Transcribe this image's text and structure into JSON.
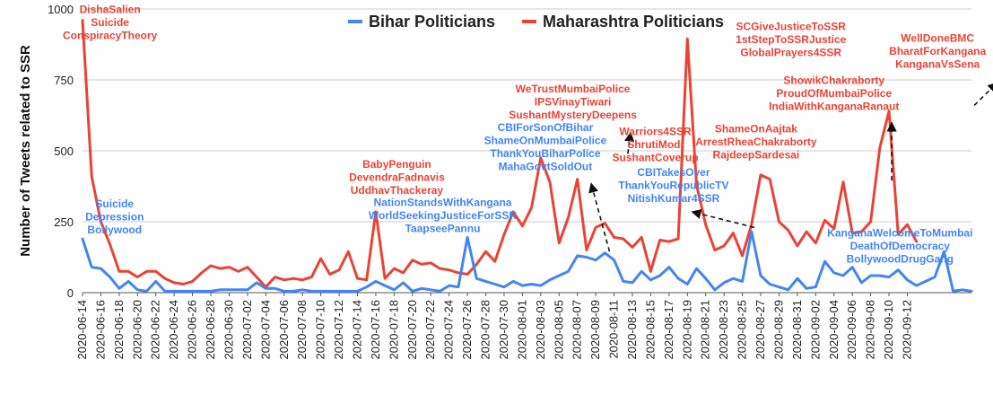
{
  "chart_data": {
    "type": "line",
    "title": "",
    "xlabel": "",
    "ylabel": "Number of Tweets related to SSR",
    "ylim": [
      0,
      1000
    ],
    "yticks": [
      0,
      250,
      500,
      750,
      1000
    ],
    "grid": true,
    "legend_position": "top-center",
    "start_date": "2020-06-14",
    "xtick_labels": [
      "2020-06-14",
      "2020-06-16",
      "2020-06-18",
      "2020-06-20",
      "2020-06-22",
      "2020-06-24",
      "2020-06-26",
      "2020-06-28",
      "2020-06-30",
      "2020-07-02",
      "2020-07-04",
      "2020-07-06",
      "2020-07-08",
      "2020-07-10",
      "2020-07-12",
      "2020-07-14",
      "2020-07-16",
      "2020-07-18",
      "2020-07-20",
      "2020-07-22",
      "2020-07-24",
      "2020-07-26",
      "2020-07-28",
      "2020-07-30",
      "2020-08-01",
      "2020-08-03",
      "2020-08-05",
      "2020-08-07",
      "2020-08-09",
      "2020-08-11",
      "2020-08-13",
      "2020-08-15",
      "2020-08-17",
      "2020-08-19",
      "2020-08-21",
      "2020-08-23",
      "2020-08-25",
      "2020-08-27",
      "2020-08-29",
      "2020-08-31",
      "2020-09-02",
      "2020-09-04",
      "2020-09-06",
      "2020-09-08",
      "2020-09-10",
      "2020-09-12"
    ],
    "series": [
      {
        "name": "Bihar Politicians",
        "color": "#4285f4",
        "values": [
          190,
          90,
          85,
          55,
          15,
          40,
          10,
          5,
          40,
          5,
          5,
          5,
          5,
          5,
          5,
          10,
          10,
          10,
          10,
          35,
          15,
          15,
          5,
          5,
          10,
          5,
          5,
          5,
          5,
          5,
          5,
          20,
          40,
          25,
          10,
          35,
          5,
          15,
          10,
          5,
          25,
          20,
          195,
          50,
          40,
          30,
          20,
          40,
          25,
          30,
          25,
          45,
          60,
          75,
          130,
          125,
          115,
          140,
          115,
          40,
          35,
          75,
          45,
          60,
          90,
          50,
          30,
          85,
          50,
          10,
          35,
          50,
          40,
          215,
          60,
          30,
          20,
          10,
          50,
          15,
          20,
          110,
          70,
          60,
          90,
          35,
          60,
          60,
          55,
          80,
          45,
          25,
          40,
          55,
          145,
          5,
          10,
          5
        ]
      },
      {
        "name": "Maharashtra Politicians",
        "color": "#ea4335",
        "values": [
          960,
          410,
          250,
          170,
          75,
          75,
          55,
          75,
          75,
          50,
          35,
          30,
          40,
          70,
          95,
          85,
          90,
          75,
          90,
          55,
          20,
          55,
          45,
          50,
          45,
          55,
          120,
          65,
          80,
          145,
          50,
          45,
          285,
          50,
          85,
          70,
          115,
          100,
          105,
          85,
          80,
          70,
          65,
          100,
          145,
          110,
          205,
          285,
          235,
          300,
          475,
          390,
          175,
          265,
          400,
          150,
          230,
          245,
          195,
          190,
          160,
          195,
          75,
          185,
          180,
          190,
          895,
          380,
          240,
          150,
          165,
          210,
          130,
          240,
          415,
          400,
          250,
          220,
          165,
          215,
          175,
          255,
          225,
          390,
          210,
          215,
          250,
          510,
          640,
          205,
          240,
          180
        ]
      }
    ],
    "annotations": [
      {
        "lines": [
          "DishaSalien",
          "Suicide",
          "ConspiracyTheory"
        ],
        "color": "#ea4335",
        "day": 3,
        "value": 985
      },
      {
        "lines": [
          "Suicide",
          "Depression",
          "Bollywood"
        ],
        "color": "#4285f4",
        "day": 3.5,
        "value": 300
      },
      {
        "lines": [
          "BabyPenguin",
          "DevendraFadnavis",
          "UddhavThackeray"
        ],
        "color": "#ea4335",
        "day": 34.3,
        "value": 440
      },
      {
        "lines": [
          "NationStandsWithKangana",
          "WorldSeekingJusticeForSSR",
          "TaapseePannu"
        ],
        "color": "#4285f4",
        "day": 39.3,
        "value": 305
      },
      {
        "lines": [
          "CBIForSonOfBihar",
          "ShameOnMumbaiPolice",
          "ThankYouBiharPolice",
          "MahaGovtSoldOut"
        ],
        "color": "#4285f4",
        "day": 50.5,
        "value": 570
      },
      {
        "lines": [
          "WeTrustMumbaiPolice",
          "IPSVinayTiwari",
          "SushantMysteryDeepens"
        ],
        "color": "#ea4335",
        "day": 53.5,
        "value": 705
      },
      {
        "lines": [
          "Warriors4SSR",
          "ShrutiModi",
          "SushantCoverup"
        ],
        "color": "#ea4335",
        "day": 62.5,
        "value": 555
      },
      {
        "lines": [
          "CBITakesOver",
          "ThankYouRepublicTV",
          "NitishKumar4SSR"
        ],
        "color": "#4285f4",
        "day": 64.5,
        "value": 412
      },
      {
        "lines": [
          "SCGiveJusticeToSSR",
          "1stStepToSSRJustice",
          "GlobalPrayers4SSR"
        ],
        "color": "#ea4335",
        "day": 77.3,
        "value": 925
      },
      {
        "lines": [
          "ShameOnAajtak",
          "ArrestRheaChakraborty",
          "RajdeepSardesai"
        ],
        "color": "#ea4335",
        "day": 73.5,
        "value": 565
      },
      {
        "lines": [
          "ShowikChakraborty",
          "ProudOfMumbaiPolice",
          "IndiaWithKanganaRanaut"
        ],
        "color": "#ea4335",
        "day": 82,
        "value": 735
      },
      {
        "lines": [
          "WellDoneBMC",
          "BharatForKangana",
          "KanganaVsSena"
        ],
        "color": "#ea4335",
        "day": 93.3,
        "value": 885
      },
      {
        "lines": [
          "KanganaWelcomeToMumbai",
          "DeathOfDemocracy",
          "BollywoodDrugGang"
        ],
        "color": "#4285f4",
        "day": 89.2,
        "value": 198
      }
    ],
    "arrows": [
      {
        "from_day": 57.5,
        "from_value": 145,
        "to_day": 55.5,
        "to_value": 385
      },
      {
        "from_day": 59.5,
        "from_value": 490,
        "to_day": 59.8,
        "to_value": 565
      },
      {
        "from_day": 73.3,
        "from_value": 230,
        "to_day": 66.5,
        "to_value": 285
      },
      {
        "from_day": 88.3,
        "from_value": 395,
        "to_day": 88.3,
        "to_value": 600
      },
      {
        "from_day": 97.3,
        "from_value": 660,
        "to_day": 99.8,
        "to_value": 740
      }
    ]
  }
}
